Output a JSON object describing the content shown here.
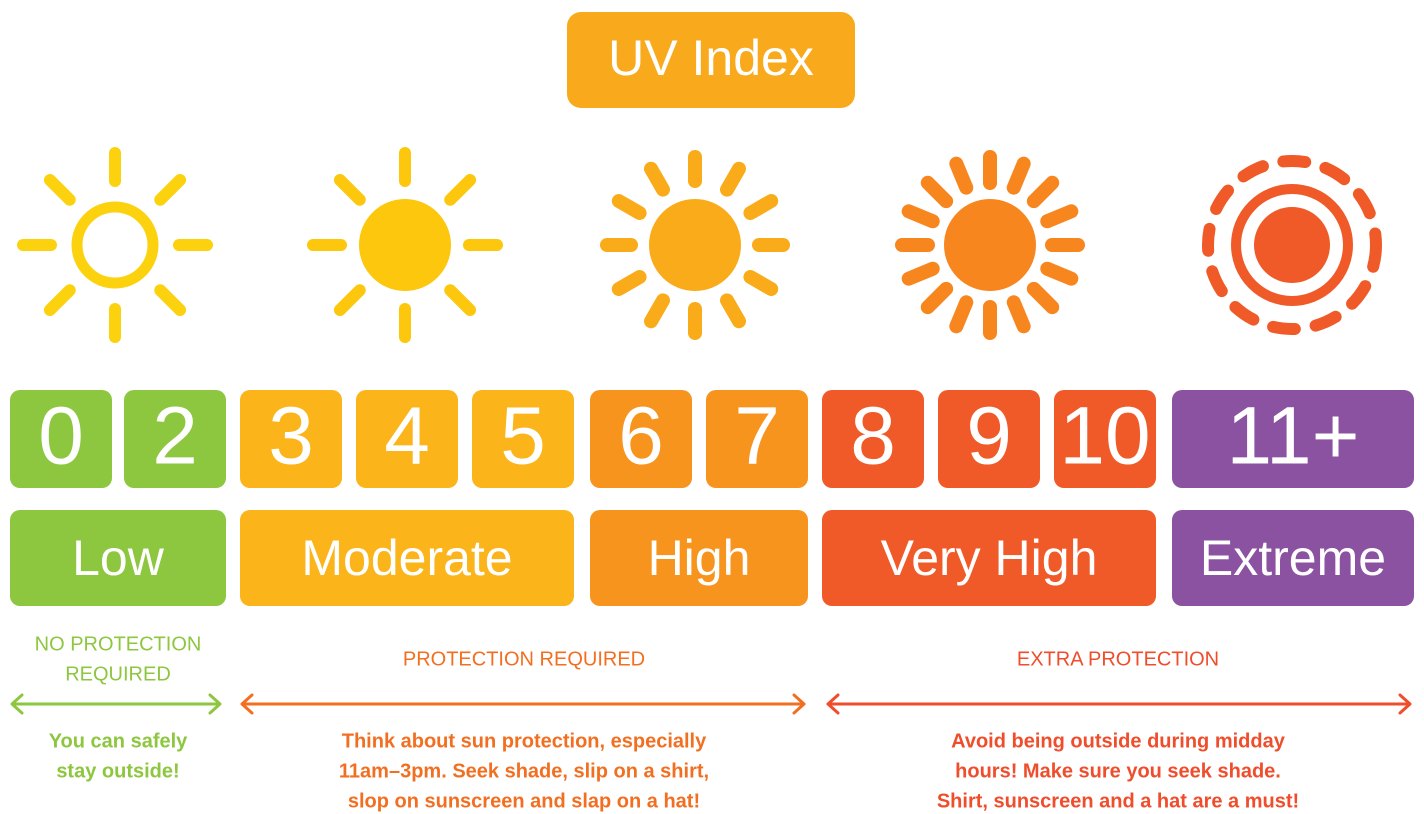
{
  "title": "UV Index",
  "numbers": [
    "0",
    "2",
    "3",
    "4",
    "5",
    "6",
    "7",
    "8",
    "9",
    "10",
    "11+"
  ],
  "levels": [
    "Low",
    "Moderate",
    "High",
    "Very High",
    "Extreme"
  ],
  "groups": [
    {
      "heading": [
        "NO PROTECTION",
        "REQUIRED"
      ],
      "description": [
        "You can safely",
        "stay outside!"
      ]
    },
    {
      "heading": [
        "PROTECTION REQUIRED"
      ],
      "description": [
        "Think about sun protection, especially",
        "11am–3pm. Seek shade, slip on a shirt,",
        "slop on sunscreen and slap on a hat!"
      ]
    },
    {
      "heading": [
        "EXTRA PROTECTION"
      ],
      "description": [
        "Avoid being outside during midday",
        "hours! Make sure you seek shade.",
        "Shirt, sunscreen and a hat are a must!"
      ]
    }
  ]
}
